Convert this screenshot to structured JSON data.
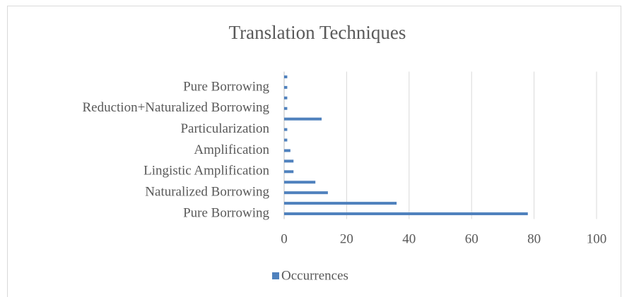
{
  "chart_data": {
    "type": "bar",
    "orientation": "horizontal",
    "title": "Translation Techniques",
    "categories": [
      "Pure Borrowing",
      null,
      "Naturalized Borrowing",
      null,
      "Lingistic Amplification",
      null,
      "Amplification",
      null,
      "Particularization",
      null,
      "Reduction+Naturalized Borrowing",
      null,
      "Pure Borrowing",
      null
    ],
    "series": [
      {
        "name": "Occurrences",
        "color": "#4f81bd",
        "values": [
          78,
          36,
          14,
          10,
          3,
          3,
          2,
          1,
          1,
          12,
          1,
          1,
          1,
          1
        ]
      }
    ],
    "xlim": [
      0,
      100
    ],
    "xticks": [
      0,
      20,
      40,
      60,
      80,
      100
    ],
    "grid": true,
    "legend": "bottom"
  }
}
